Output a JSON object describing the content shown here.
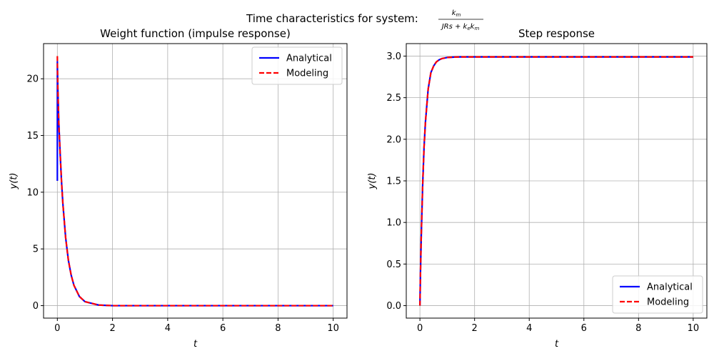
{
  "figure": {
    "suptitle_prefix": "Time characteristics for system: ",
    "tf_numerator": "k",
    "tf_numerator_sub": "m",
    "tf_den_a": "JRs + k",
    "tf_den_a_sub": "e",
    "tf_den_b": "k",
    "tf_den_b_sub": "m"
  },
  "chart_data": [
    {
      "type": "line",
      "title": "Weight function (impulse response)",
      "xlabel": "t",
      "ylabel": "y(t)",
      "xlim": [
        -0.5,
        10.5
      ],
      "ylim": [
        -1.1,
        23.1
      ],
      "xticks": [
        0,
        2,
        4,
        6,
        8,
        10
      ],
      "yticks": [
        0,
        5,
        10,
        15,
        20
      ],
      "grid": true,
      "legend": "top-right",
      "series": [
        {
          "name": "Analytical",
          "color": "#0000ff",
          "style": "solid",
          "x": [
            0,
            0.001,
            0.003,
            0.005,
            0.01,
            0.02,
            0.05,
            0.1,
            0.15,
            0.2,
            0.3,
            0.4,
            0.5,
            0.6,
            0.8,
            1.0,
            1.5,
            2,
            3,
            5,
            10
          ],
          "y": [
            11,
            21.5,
            21.2,
            20.8,
            20.2,
            19.0,
            16.3,
            13.5,
            11.0,
            9.0,
            6.0,
            4.0,
            2.7,
            1.8,
            0.8,
            0.35,
            0.05,
            0.0,
            0.0,
            0.0,
            0.0
          ]
        },
        {
          "name": "Modeling",
          "color": "#ff0000",
          "style": "dashed",
          "x": [
            0,
            0.003,
            0.005,
            0.01,
            0.02,
            0.05,
            0.1,
            0.15,
            0.2,
            0.3,
            0.4,
            0.5,
            0.6,
            0.8,
            1.0,
            1.5,
            2,
            3,
            5,
            10
          ],
          "y": [
            22,
            21.2,
            20.8,
            20.2,
            19.0,
            16.3,
            13.5,
            11.0,
            9.0,
            6.0,
            4.0,
            2.7,
            1.8,
            0.8,
            0.35,
            0.05,
            0.0,
            0.0,
            0.0,
            0.0
          ]
        }
      ]
    },
    {
      "type": "line",
      "title": "Step response",
      "xlabel": "t",
      "ylabel": "y(t)",
      "xlim": [
        -0.5,
        10.5
      ],
      "ylim": [
        -0.15,
        3.15
      ],
      "xticks": [
        0,
        2,
        4,
        6,
        8,
        10
      ],
      "yticks": [
        0.0,
        0.5,
        1.0,
        1.5,
        2.0,
        2.5,
        3.0
      ],
      "ytick_decimals": 1,
      "grid": true,
      "legend": "bottom-right",
      "series": [
        {
          "name": "Analytical",
          "color": "#0000ff",
          "style": "solid",
          "x": [
            0,
            0.02,
            0.05,
            0.1,
            0.15,
            0.2,
            0.3,
            0.4,
            0.5,
            0.6,
            0.7,
            0.8,
            1.0,
            1.2,
            1.5,
            2,
            3,
            5,
            10
          ],
          "y": [
            0,
            0.4,
            0.85,
            1.45,
            1.9,
            2.2,
            2.6,
            2.8,
            2.88,
            2.93,
            2.955,
            2.97,
            2.983,
            2.987,
            2.99,
            2.99,
            2.99,
            2.99,
            2.99
          ]
        },
        {
          "name": "Modeling",
          "color": "#ff0000",
          "style": "dashed",
          "x": [
            0,
            0.02,
            0.05,
            0.1,
            0.15,
            0.2,
            0.3,
            0.4,
            0.5,
            0.6,
            0.7,
            0.8,
            1.0,
            1.2,
            1.5,
            2,
            3,
            5,
            10
          ],
          "y": [
            0,
            0.4,
            0.85,
            1.45,
            1.9,
            2.2,
            2.6,
            2.8,
            2.88,
            2.93,
            2.955,
            2.97,
            2.983,
            2.987,
            2.99,
            2.99,
            2.99,
            2.99,
            2.99
          ]
        }
      ]
    }
  ]
}
